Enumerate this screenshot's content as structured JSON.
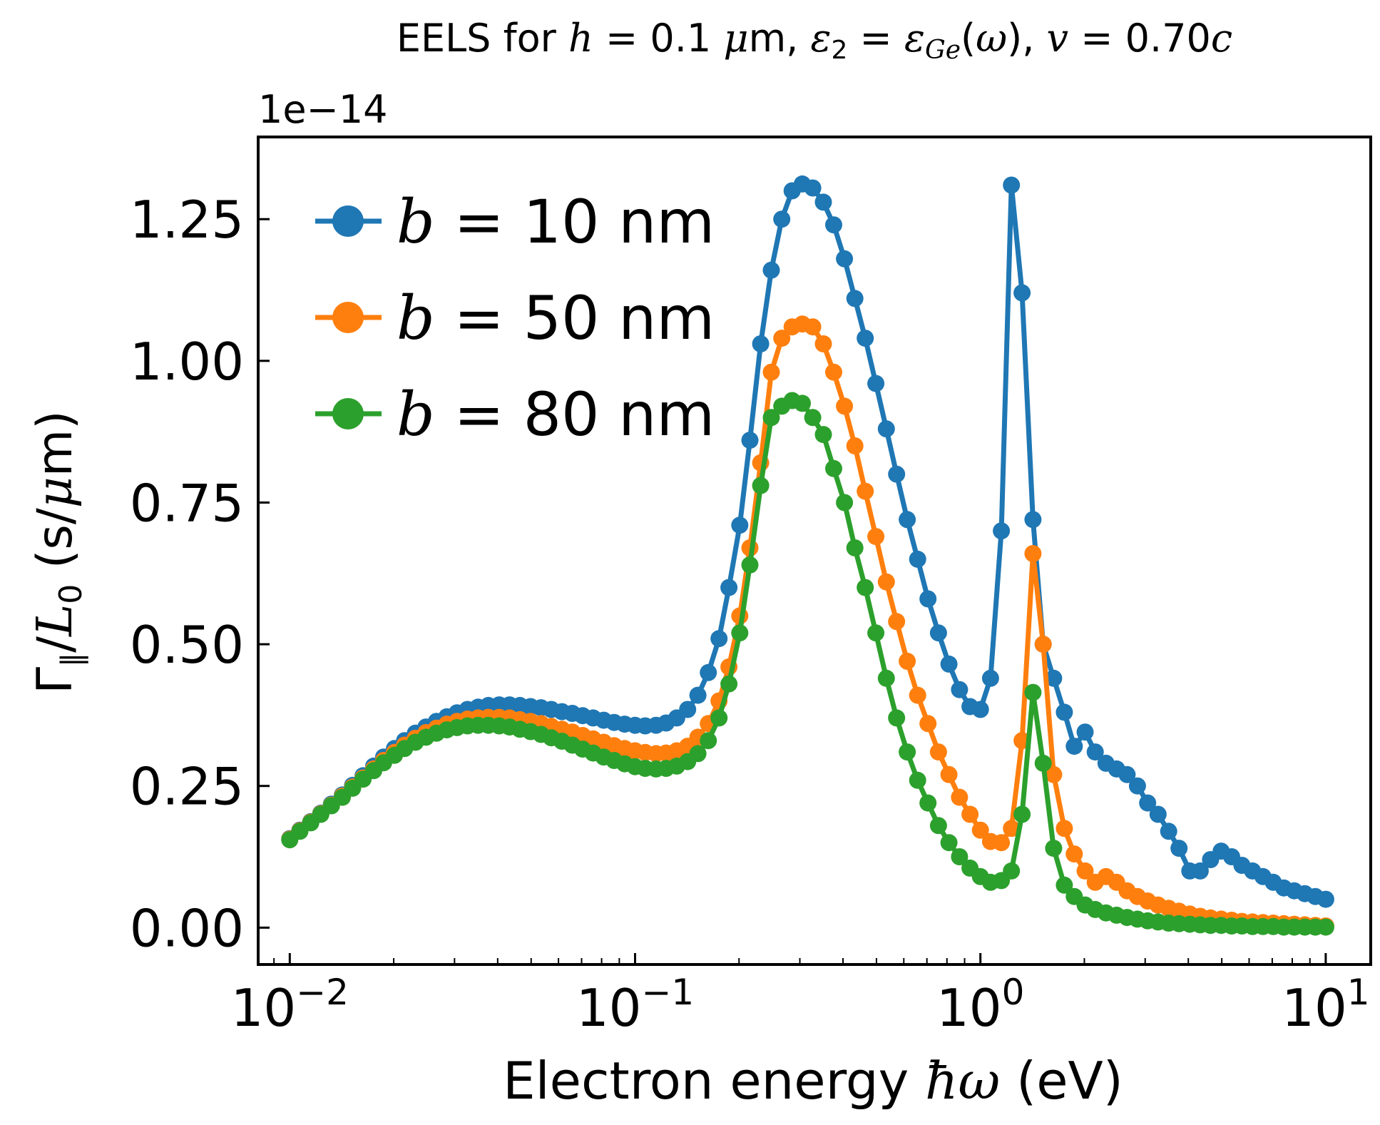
{
  "chart_data": {
    "type": "line",
    "title": "EELS for h = 0.1 μm, ε₂ = ε_Ge(ω), v = 0.70c",
    "title_parts": {
      "t1": "EELS for ",
      "h": "h",
      "t2": " = 0.1 ",
      "mu": "μ",
      "t3": "m, ",
      "eps": "ε",
      "eps_sub": "2",
      "t4": " = ",
      "eps2": "ε",
      "ge_sub": "Ge",
      "t5": "(",
      "omega": "ω",
      "t6": "), ",
      "v": "v",
      "t7": " = 0.70",
      "c": "c"
    },
    "xlabel": "Electron energy ħω (eV)",
    "xlabel_parts": {
      "t1": "Electron energy ",
      "hbar": "ħω",
      "t2": " (eV)"
    },
    "ylabel": "Γ‖/L₀ (s/μm)",
    "ylabel_parts": {
      "gamma": "Γ",
      "par": "‖",
      "slash": "/",
      "L": "L",
      "L_sub": "0",
      "t1": " (s/",
      "mu": "μ",
      "t2": "m)"
    },
    "y_offset_label": "1e−14",
    "x_scale": "log",
    "xlim": [
      0.0081,
      13.5
    ],
    "ylim": [
      -0.065,
      1.395
    ],
    "y_multiplier": 1e-14,
    "x_ticks": [
      {
        "value": 0.01,
        "base": "10",
        "exp": "−2"
      },
      {
        "value": 0.1,
        "base": "10",
        "exp": "−1"
      },
      {
        "value": 1,
        "base": "10",
        "exp": "0"
      },
      {
        "value": 10,
        "base": "10",
        "exp": "1"
      }
    ],
    "y_ticks": [
      {
        "value": 0.0,
        "label": "0.00"
      },
      {
        "value": 0.25,
        "label": "0.25"
      },
      {
        "value": 0.5,
        "label": "0.50"
      },
      {
        "value": 0.75,
        "label": "0.75"
      },
      {
        "value": 1.0,
        "label": "1.00"
      },
      {
        "value": 1.25,
        "label": "1.25"
      }
    ],
    "grid": false,
    "legend_position": "top-left",
    "x": [
      0.01,
      0.0107,
      0.0115,
      0.0123,
      0.0132,
      0.0142,
      0.0152,
      0.0163,
      0.0175,
      0.0187,
      0.0201,
      0.0215,
      0.0231,
      0.0248,
      0.0266,
      0.0285,
      0.0305,
      0.0327,
      0.0351,
      0.0376,
      0.0404,
      0.0433,
      0.0464,
      0.0498,
      0.0534,
      0.0572,
      0.0614,
      0.0658,
      0.0705,
      0.0756,
      0.0811,
      0.087,
      0.0933,
      0.1,
      0.107,
      0.115,
      0.123,
      0.132,
      0.142,
      0.152,
      0.163,
      0.175,
      0.187,
      0.201,
      0.215,
      0.231,
      0.248,
      0.266,
      0.285,
      0.305,
      0.327,
      0.351,
      0.376,
      0.404,
      0.433,
      0.464,
      0.498,
      0.534,
      0.572,
      0.614,
      0.658,
      0.705,
      0.756,
      0.811,
      0.87,
      0.933,
      1.0,
      1.07,
      1.15,
      1.23,
      1.32,
      1.42,
      1.52,
      1.63,
      1.75,
      1.87,
      2.01,
      2.15,
      2.31,
      2.48,
      2.66,
      2.85,
      3.05,
      3.27,
      3.51,
      3.76,
      4.04,
      4.33,
      4.64,
      4.98,
      5.34,
      5.72,
      6.14,
      6.58,
      7.05,
      7.56,
      8.11,
      8.7,
      9.33,
      10.0
    ],
    "series": [
      {
        "name": "b = 10 nm",
        "name_parts": {
          "b": "b",
          "t": " = 10 nm"
        },
        "color": "#1f77b4",
        "values": [
          0.157,
          0.172,
          0.187,
          0.202,
          0.218,
          0.234,
          0.251,
          0.268,
          0.285,
          0.301,
          0.316,
          0.33,
          0.343,
          0.354,
          0.364,
          0.372,
          0.379,
          0.385,
          0.389,
          0.392,
          0.393,
          0.393,
          0.392,
          0.39,
          0.388,
          0.385,
          0.381,
          0.378,
          0.374,
          0.37,
          0.366,
          0.362,
          0.359,
          0.357,
          0.356,
          0.357,
          0.361,
          0.37,
          0.385,
          0.41,
          0.45,
          0.51,
          0.6,
          0.71,
          0.86,
          1.03,
          1.16,
          1.25,
          1.3,
          1.312,
          1.305,
          1.28,
          1.24,
          1.18,
          1.11,
          1.04,
          0.96,
          0.88,
          0.8,
          0.72,
          0.65,
          0.58,
          0.52,
          0.465,
          0.42,
          0.39,
          0.385,
          0.44,
          0.7,
          1.31,
          1.12,
          0.72,
          0.5,
          0.44,
          0.38,
          0.32,
          0.345,
          0.31,
          0.29,
          0.28,
          0.27,
          0.25,
          0.22,
          0.2,
          0.17,
          0.14,
          0.1,
          0.1,
          0.12,
          0.135,
          0.125,
          0.11,
          0.1,
          0.09,
          0.08,
          0.07,
          0.065,
          0.06,
          0.055,
          0.05
        ]
      },
      {
        "name": "b = 50 nm",
        "name_parts": {
          "b": "b",
          "t": " = 50 nm"
        },
        "color": "#ff7f0e",
        "values": [
          0.156,
          0.171,
          0.186,
          0.201,
          0.216,
          0.232,
          0.248,
          0.264,
          0.28,
          0.295,
          0.309,
          0.322,
          0.334,
          0.344,
          0.352,
          0.359,
          0.364,
          0.368,
          0.37,
          0.371,
          0.371,
          0.37,
          0.367,
          0.364,
          0.36,
          0.355,
          0.35,
          0.345,
          0.339,
          0.333,
          0.327,
          0.321,
          0.316,
          0.312,
          0.309,
          0.307,
          0.308,
          0.312,
          0.32,
          0.336,
          0.36,
          0.4,
          0.46,
          0.55,
          0.67,
          0.82,
          0.98,
          1.04,
          1.06,
          1.065,
          1.06,
          1.03,
          0.98,
          0.92,
          0.85,
          0.77,
          0.69,
          0.61,
          0.54,
          0.47,
          0.41,
          0.36,
          0.31,
          0.27,
          0.23,
          0.2,
          0.172,
          0.152,
          0.15,
          0.175,
          0.33,
          0.66,
          0.5,
          0.27,
          0.175,
          0.13,
          0.1,
          0.08,
          0.09,
          0.08,
          0.065,
          0.055,
          0.047,
          0.04,
          0.034,
          0.029,
          0.024,
          0.02,
          0.017,
          0.015,
          0.013,
          0.011,
          0.01,
          0.009,
          0.008,
          0.007,
          0.006,
          0.005,
          0.004,
          0.003
        ]
      },
      {
        "name": "b = 80 nm",
        "name_parts": {
          "b": "b",
          "t": " = 80 nm"
        },
        "color": "#2ca02c",
        "values": [
          0.155,
          0.17,
          0.185,
          0.2,
          0.215,
          0.23,
          0.246,
          0.262,
          0.277,
          0.291,
          0.304,
          0.316,
          0.327,
          0.336,
          0.343,
          0.349,
          0.353,
          0.356,
          0.357,
          0.357,
          0.356,
          0.354,
          0.35,
          0.346,
          0.341,
          0.335,
          0.329,
          0.322,
          0.315,
          0.308,
          0.301,
          0.295,
          0.289,
          0.284,
          0.281,
          0.28,
          0.281,
          0.285,
          0.293,
          0.307,
          0.33,
          0.37,
          0.43,
          0.52,
          0.64,
          0.78,
          0.9,
          0.92,
          0.93,
          0.925,
          0.9,
          0.87,
          0.81,
          0.75,
          0.67,
          0.6,
          0.52,
          0.44,
          0.37,
          0.31,
          0.26,
          0.22,
          0.18,
          0.15,
          0.125,
          0.105,
          0.09,
          0.08,
          0.083,
          0.1,
          0.2,
          0.415,
          0.29,
          0.14,
          0.075,
          0.055,
          0.04,
          0.032,
          0.026,
          0.022,
          0.018,
          0.015,
          0.012,
          0.01,
          0.008,
          0.007,
          0.006,
          0.005,
          0.004,
          0.004,
          0.003,
          0.003,
          0.002,
          0.002,
          0.002,
          0.001,
          0.001,
          0.001,
          0.001,
          0.001
        ]
      }
    ]
  }
}
